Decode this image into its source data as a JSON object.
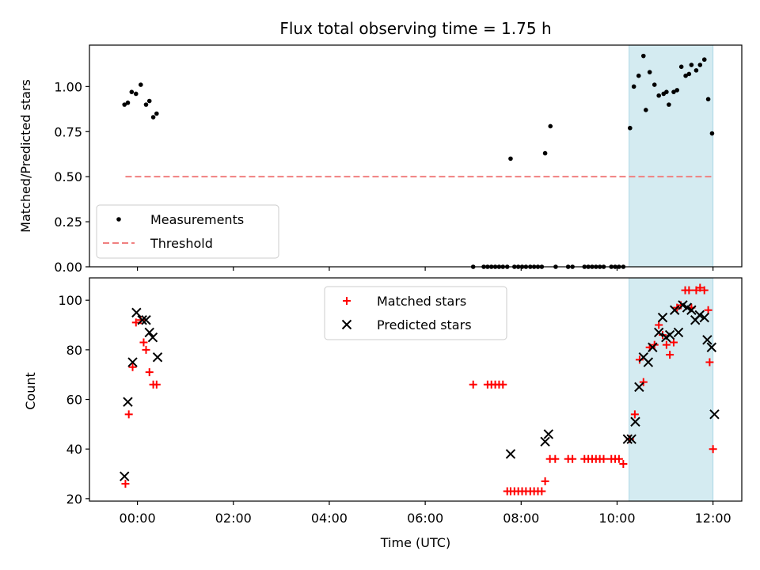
{
  "chart_data": [
    {
      "type": "scatter",
      "title": "Flux total observing time = 1.75 h",
      "xlabel": "",
      "ylabel": "Matched/Predicted stars",
      "xlim": [
        -1.0,
        12.6
      ],
      "ylim": [
        0.0,
        1.23
      ],
      "yticks": [
        0.0,
        0.25,
        0.5,
        0.75,
        1.0
      ],
      "ytick_labels": [
        "0.00",
        "0.25",
        "0.50",
        "0.75",
        "1.00"
      ],
      "legend_position": "lower-left",
      "shaded_region": {
        "x_start": 10.25,
        "x_end": 12.0,
        "color": "#d4ebf1"
      },
      "series": [
        {
          "name": "Measurements",
          "marker": "dot",
          "color": "#000000",
          "x": [
            -0.27,
            -0.2,
            -0.12,
            -0.03,
            0.07,
            0.18,
            0.25,
            0.33,
            0.4,
            7.0,
            7.22,
            7.3,
            7.38,
            7.46,
            7.54,
            7.62,
            7.71,
            7.78,
            7.86,
            7.94,
            8.02,
            8.1,
            8.19,
            8.27,
            8.35,
            8.43,
            8.5,
            8.61,
            8.72,
            8.98,
            9.07,
            9.32,
            9.4,
            9.48,
            9.56,
            9.64,
            9.72,
            9.88,
            9.96,
            10.04,
            10.13,
            10.27,
            10.35,
            10.45,
            10.55,
            10.6,
            10.68,
            10.78,
            10.87,
            10.97,
            11.03,
            11.08,
            11.18,
            11.25,
            11.34,
            11.43,
            11.5,
            11.55,
            11.65,
            11.73,
            11.82,
            11.9,
            11.98
          ],
          "y": [
            0.9,
            0.91,
            0.97,
            0.96,
            1.01,
            0.9,
            0.92,
            0.83,
            0.85,
            0.0,
            0.0,
            0.0,
            0.0,
            0.0,
            0.0,
            0.0,
            0.0,
            0.6,
            0.0,
            0.0,
            0.0,
            0.0,
            0.0,
            0.0,
            0.0,
            0.0,
            0.63,
            0.78,
            0.0,
            0.0,
            0.0,
            0.0,
            0.0,
            0.0,
            0.0,
            0.0,
            0.0,
            0.0,
            0.0,
            0.0,
            0.0,
            0.77,
            1.0,
            1.06,
            1.17,
            0.87,
            1.08,
            1.01,
            0.95,
            0.96,
            0.97,
            0.9,
            0.97,
            0.98,
            1.11,
            1.06,
            1.07,
            1.12,
            1.09,
            1.12,
            1.15,
            0.93,
            0.74
          ]
        },
        {
          "name": "Threshold",
          "marker": "dashed-line",
          "color": "#f08080",
          "x": [
            -0.25,
            12.0
          ],
          "y": [
            0.5,
            0.5
          ]
        }
      ]
    },
    {
      "type": "scatter",
      "title": "",
      "xlabel": "Time (UTC)",
      "ylabel": "Count",
      "xlim": [
        -1.0,
        12.6
      ],
      "ylim": [
        19.0,
        109.0
      ],
      "yticks": [
        20,
        40,
        60,
        80,
        100
      ],
      "ytick_labels": [
        "20",
        "40",
        "60",
        "80",
        "100"
      ],
      "xticks": [
        0,
        2,
        4,
        6,
        8,
        10,
        12
      ],
      "xtick_labels": [
        "00:00",
        "02:00",
        "04:00",
        "06:00",
        "08:00",
        "10:00",
        "12:00"
      ],
      "legend_position": "upper-center",
      "shaded_region": {
        "x_start": 10.25,
        "x_end": 12.0,
        "color": "#d4ebf1"
      },
      "series": [
        {
          "name": "Matched stars",
          "marker": "plus",
          "color": "#ff0000",
          "x": [
            -0.25,
            -0.18,
            -0.1,
            -0.03,
            0.07,
            0.13,
            0.18,
            0.25,
            0.33,
            0.4,
            7.0,
            7.3,
            7.38,
            7.46,
            7.54,
            7.62,
            7.71,
            7.78,
            7.86,
            7.94,
            8.02,
            8.1,
            8.19,
            8.27,
            8.35,
            8.43,
            8.5,
            8.6,
            8.71,
            8.98,
            9.07,
            9.32,
            9.4,
            9.48,
            9.56,
            9.64,
            9.72,
            9.88,
            9.96,
            10.04,
            10.13,
            10.27,
            10.37,
            10.47,
            10.55,
            10.68,
            10.78,
            10.87,
            10.95,
            11.03,
            11.1,
            11.18,
            11.25,
            11.33,
            11.42,
            11.5,
            11.55,
            11.65,
            11.73,
            11.82,
            11.9,
            11.93,
            12.0
          ],
          "y": [
            26,
            54,
            73,
            91,
            92,
            83,
            80,
            71,
            66,
            66,
            66,
            66,
            66,
            66,
            66,
            66,
            23,
            23,
            23,
            23,
            23,
            23,
            23,
            23,
            23,
            23,
            27,
            36,
            36,
            36,
            36,
            36,
            36,
            36,
            36,
            36,
            36,
            36,
            36,
            36,
            34,
            44,
            54,
            76,
            67,
            81,
            82,
            90,
            86,
            82,
            78,
            83,
            97,
            98,
            104,
            104,
            97,
            104,
            105,
            104,
            96,
            75,
            40
          ]
        },
        {
          "name": "Predicted stars",
          "marker": "x",
          "color": "#000000",
          "x": [
            -0.27,
            -0.2,
            -0.1,
            -0.02,
            0.1,
            0.18,
            0.25,
            0.32,
            0.42,
            7.78,
            8.5,
            8.57,
            10.22,
            10.3,
            10.38,
            10.46,
            10.55,
            10.65,
            10.74,
            10.87,
            10.95,
            11.02,
            11.1,
            11.2,
            11.28,
            11.37,
            11.46,
            11.55,
            11.63,
            11.72,
            11.82,
            11.88,
            11.97,
            12.03
          ],
          "y": [
            29,
            59,
            75,
            95,
            92,
            92,
            87,
            85,
            77,
            38,
            43,
            46,
            44,
            44,
            51,
            65,
            77,
            75,
            81,
            87,
            93,
            85,
            86,
            96,
            87,
            98,
            97,
            96,
            92,
            94,
            93,
            84,
            81,
            54
          ]
        }
      ]
    }
  ]
}
